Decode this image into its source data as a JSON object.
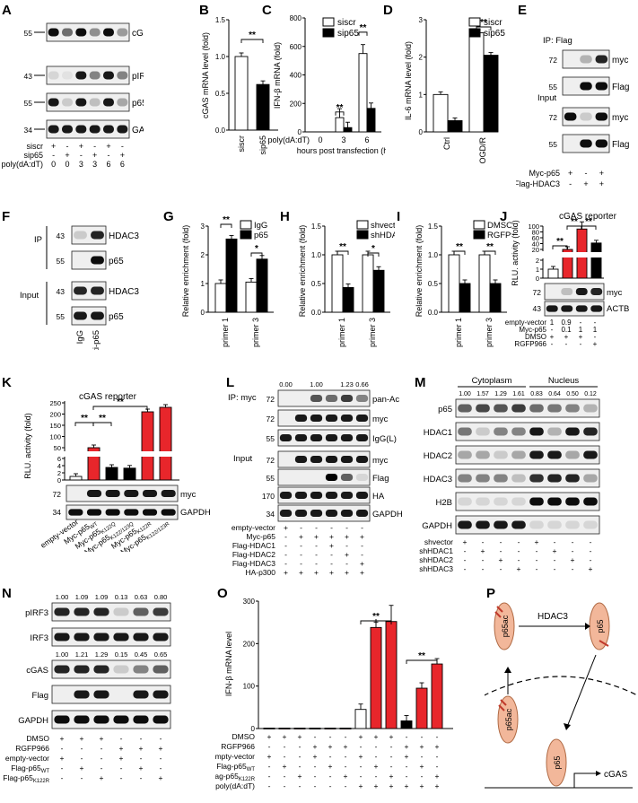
{
  "panels": {
    "A": {
      "letter": "A",
      "markers": [
        "55",
        "43",
        "55",
        "34"
      ],
      "blots": [
        "cGAS",
        "pIRF3",
        "p65",
        "GAPDH"
      ],
      "rows": [
        {
          "label": "siscr",
          "vals": [
            "+",
            "-",
            "+",
            "-",
            "+",
            "-"
          ]
        },
        {
          "label": "sip65",
          "vals": [
            "-",
            "+",
            "-",
            "+",
            "-",
            "+"
          ]
        },
        {
          "label": "poly(dA:dT)",
          "vals": [
            "0",
            "0",
            "3",
            "3",
            "6",
            "6"
          ]
        }
      ]
    },
    "B": {
      "letter": "B",
      "ylabel": "cGAS mRNA level (fold)",
      "sig": "**"
    },
    "C": {
      "letter": "C",
      "ylabel": "IFN-β mRNA (fold)",
      "xlabel": "hours post transfection (h)",
      "xprefix": "poly(dA:dT)",
      "legend": [
        "siscr",
        "sip65"
      ],
      "sig": [
        "**",
        "**"
      ]
    },
    "D": {
      "letter": "D",
      "ylabel": "IL-6 mRNA level (fold)",
      "legend": [
        "siscr",
        "sip65"
      ],
      "sig": "**"
    },
    "E": {
      "letter": "E",
      "ip": "IP: Flag",
      "input": "Input",
      "markers": [
        "72",
        "55",
        "72",
        "55"
      ],
      "blots": [
        "myc",
        "Flag",
        "myc",
        "Flag"
      ],
      "rows": [
        {
          "label": "Myc-p65",
          "vals": [
            "+",
            "-",
            "+"
          ]
        },
        {
          "label": "Flag-HDAC3",
          "vals": [
            "-",
            "+",
            "+"
          ]
        }
      ]
    },
    "F": {
      "letter": "F",
      "ip": "IP",
      "input": "Input",
      "markers": [
        "43",
        "55",
        "43",
        "55"
      ],
      "blots": [
        "HDAC3",
        "p65",
        "HDAC3",
        "p65"
      ],
      "lanes": [
        "IgG",
        "anti-p65"
      ]
    },
    "G": {
      "letter": "G",
      "ylabel": "Relative enrichment (fold)",
      "legend": [
        "IgG",
        "p65"
      ],
      "sig": [
        "**",
        "*"
      ]
    },
    "H": {
      "letter": "H",
      "ylabel": "Relative enrichment (fold)",
      "legend": [
        "shvector",
        "shHDAC3"
      ],
      "sig": [
        "**",
        "*"
      ]
    },
    "I": {
      "letter": "I",
      "ylabel": "Relative enrichment (fold)",
      "legend": [
        "DMSO",
        "RGFP966"
      ],
      "sig": [
        "**",
        "**"
      ]
    },
    "J": {
      "letter": "J",
      "title": "cGAS reporter",
      "ylabel": "RLU. activity (fold)",
      "sig": [
        "**",
        "**",
        "**"
      ],
      "markers": [
        "72",
        "43"
      ],
      "blots": [
        "myc",
        "ACTB"
      ],
      "rows": [
        {
          "label": "empty-vector",
          "vals": [
            "1",
            "0.9",
            "-",
            "-"
          ]
        },
        {
          "label": "Myc-p65",
          "vals": [
            "-",
            "0.1",
            "1",
            "1"
          ]
        },
        {
          "label": "DMSO",
          "vals": [
            "+",
            "+",
            "+",
            "-"
          ]
        },
        {
          "label": "RGFP966",
          "vals": [
            "-",
            "-",
            "-",
            "+"
          ]
        }
      ]
    },
    "K": {
      "letter": "K",
      "title": "cGAS reporter",
      "ylabel": "RLU. activity (fold)",
      "sig": [
        "**",
        "**",
        "**"
      ],
      "markers": [
        "72",
        "34"
      ],
      "blots": [
        "myc",
        "GAPDH"
      ],
      "lanes": [
        {
          "main": "empty-vector",
          "sub": ""
        },
        {
          "main": "Myc-p65",
          "sub": "WT"
        },
        {
          "main": "Myc-p65",
          "sub": "K122Q"
        },
        {
          "main": "Myc-p65",
          "sub": "K122/123Q"
        },
        {
          "main": "Myc-p65",
          "sub": "K122R"
        },
        {
          "main": "Myc-p65",
          "sub": "K122/123R"
        }
      ]
    },
    "L": {
      "letter": "L",
      "ip": "IP: myc",
      "input": "Input",
      "quant": [
        "0.00",
        "1.00",
        "1.23",
        "0.66"
      ],
      "markers": [
        "72",
        "72",
        "55",
        "72",
        "55",
        "170",
        "34"
      ],
      "blots": [
        "pan-Ac",
        "myc",
        "IgG(L)",
        "myc",
        "Flag",
        "HA",
        "GAPDH"
      ],
      "rows": [
        {
          "label": "empty-vector",
          "vals": [
            "+",
            "-",
            "-",
            "-",
            "-",
            "-"
          ]
        },
        {
          "label": "Myc-p65",
          "vals": [
            "-",
            "+",
            "+",
            "+",
            "+",
            "+"
          ]
        },
        {
          "label": "Flag-HDAC1",
          "vals": [
            "-",
            "-",
            "-",
            "+",
            "-",
            "-"
          ]
        },
        {
          "label": "Flag-HDAC2",
          "vals": [
            "-",
            "-",
            "-",
            "-",
            "+",
            "-"
          ]
        },
        {
          "label": "Flag-HDAC3",
          "vals": [
            "-",
            "-",
            "-",
            "-",
            "-",
            "+"
          ]
        },
        {
          "label": "HA-p300",
          "vals": [
            "+",
            "+",
            "+",
            "+",
            "+",
            "+"
          ]
        }
      ]
    },
    "M": {
      "letter": "M",
      "groups": [
        "Cytoplasm",
        "Nucleus"
      ],
      "quant": [
        "1.00",
        "1.57",
        "1.29",
        "1.61",
        "0.83",
        "0.64",
        "0.50",
        "0.12"
      ],
      "blots": [
        "p65",
        "HDAC1",
        "HDAC2",
        "HDAC3",
        "H2B",
        "GAPDH"
      ],
      "rows": [
        {
          "label": "shvector",
          "vals": [
            "+",
            "-",
            "-",
            "-",
            "+",
            "-",
            "-",
            "-"
          ]
        },
        {
          "label": "shHDAC1",
          "vals": [
            "-",
            "+",
            "-",
            "-",
            "-",
            "+",
            "-",
            "-"
          ]
        },
        {
          "label": "shHDAC2",
          "vals": [
            "-",
            "-",
            "+",
            "-",
            "-",
            "-",
            "+",
            "-"
          ]
        },
        {
          "label": "shHDAC3",
          "vals": [
            "-",
            "-",
            "-",
            "+",
            "-",
            "-",
            "-",
            "+"
          ]
        }
      ]
    },
    "N": {
      "letter": "N",
      "quant1": [
        "1.00",
        "1.09",
        "1.09",
        "0.13",
        "0.63",
        "0.80"
      ],
      "quant2": [
        "1.00",
        "1.21",
        "1.29",
        "0.15",
        "0.45",
        "0.65"
      ],
      "blots": [
        "pIRF3",
        "IRF3",
        "cGAS",
        "Flag",
        "GAPDH"
      ],
      "rows": [
        {
          "label": "DMSO",
          "main": "DMSO",
          "sub": "",
          "vals": [
            "+",
            "+",
            "+",
            "-",
            "-",
            "-"
          ]
        },
        {
          "label": "RGFP966",
          "main": "RGFP966",
          "sub": "",
          "vals": [
            "-",
            "-",
            "-",
            "+",
            "+",
            "+"
          ]
        },
        {
          "label": "empty-vector",
          "main": "empty-vector",
          "sub": "",
          "vals": [
            "+",
            "-",
            "-",
            "+",
            "-",
            "-"
          ]
        },
        {
          "label": "Flag-p65WT",
          "main": "Flag-p65",
          "sub": "WT",
          "vals": [
            "-",
            "+",
            "-",
            "-",
            "+",
            "-"
          ]
        },
        {
          "label": "Flag-p65K122R",
          "main": "Flag-p65",
          "sub": "K122R",
          "vals": [
            "-",
            "-",
            "+",
            "-",
            "-",
            "+"
          ]
        }
      ]
    },
    "O": {
      "letter": "O",
      "ylabel": "IFN-β mRNA level",
      "yticks": [
        "0",
        "100",
        "200",
        "300"
      ],
      "sig": [
        "**",
        "**"
      ],
      "rows": [
        {
          "main": "DMSO",
          "sub": "",
          "vals": [
            "+",
            "+",
            "+",
            "-",
            "-",
            "-",
            "+",
            "+",
            "+",
            "-",
            "-",
            "-"
          ]
        },
        {
          "main": "RGFP966",
          "sub": "",
          "vals": [
            "-",
            "-",
            "-",
            "+",
            "+",
            "+",
            "-",
            "-",
            "-",
            "+",
            "+",
            "+"
          ]
        },
        {
          "main": "empty-vector",
          "sub": "",
          "vals": [
            "+",
            "-",
            "-",
            "+",
            "-",
            "-",
            "+",
            "-",
            "-",
            "+",
            "-",
            "-"
          ]
        },
        {
          "main": "Flag-p65",
          "sub": "WT",
          "vals": [
            "-",
            "+",
            "-",
            "-",
            "+",
            "-",
            "-",
            "+",
            "-",
            "-",
            "+",
            "-"
          ]
        },
        {
          "main": "Flag-p65",
          "sub": "K122R",
          "vals": [
            "-",
            "-",
            "+",
            "-",
            "-",
            "+",
            "-",
            "-",
            "+",
            "-",
            "-",
            "+"
          ]
        },
        {
          "main": "poly(dA:dT)",
          "sub": "",
          "vals": [
            "-",
            "-",
            "-",
            "-",
            "-",
            "-",
            "+",
            "+",
            "+",
            "+",
            "+",
            "+"
          ]
        }
      ]
    },
    "P": {
      "letter": "P",
      "enzyme": "HDAC3",
      "p65ac": "p65ac",
      "p65": "p65",
      "gene": "cGAS"
    }
  },
  "chart_data": [
    {
      "panel": "B",
      "type": "bar",
      "categories": [
        "siscr",
        "sip65"
      ],
      "values": [
        1.0,
        0.62
      ],
      "ylim": [
        0,
        1.5
      ],
      "yticks": [
        0,
        0.5,
        1.0,
        1.5
      ],
      "ylabel": "cGAS mRNA level (fold)",
      "colors": [
        "#ffffff",
        "#000000"
      ]
    },
    {
      "panel": "C",
      "type": "bar",
      "categories": [
        "0",
        "3",
        "6"
      ],
      "series": [
        {
          "name": "siscr",
          "values": [
            0,
            100,
            550
          ]
        },
        {
          "name": "sip65",
          "values": [
            0,
            30,
            165
          ]
        }
      ],
      "ylim": [
        0,
        800
      ],
      "yticks": [
        0,
        200,
        400,
        600,
        800
      ],
      "ylabel": "IFN-β mRNA (fold)",
      "xlabel": "hours post transfection (h)"
    },
    {
      "panel": "D",
      "type": "bar",
      "categories": [
        "Ctrl",
        "OGD/R"
      ],
      "series": [
        {
          "name": "siscr",
          "values": [
            1.0,
            2.65
          ]
        },
        {
          "name": "sip65",
          "values": [
            0.3,
            2.05
          ]
        }
      ],
      "ylim": [
        0,
        3
      ],
      "yticks": [
        0,
        1,
        2,
        3
      ],
      "ylabel": "IL-6 mRNA level (fold)"
    },
    {
      "panel": "G",
      "type": "bar",
      "categories": [
        "primer 1",
        "primer 3"
      ],
      "series": [
        {
          "name": "IgG",
          "values": [
            1.0,
            1.05
          ]
        },
        {
          "name": "p65",
          "values": [
            2.55,
            1.85
          ]
        }
      ],
      "ylim": [
        0,
        3
      ],
      "yticks": [
        0,
        1,
        2,
        3
      ],
      "ylabel": "Relative enrichment (fold)"
    },
    {
      "panel": "H",
      "type": "bar",
      "categories": [
        "primer 1",
        "primer 3"
      ],
      "series": [
        {
          "name": "shvector",
          "values": [
            1.0,
            1.0
          ]
        },
        {
          "name": "shHDAC3",
          "values": [
            0.43,
            0.73
          ]
        }
      ],
      "ylim": [
        0,
        1.5
      ],
      "yticks": [
        0,
        0.5,
        1.0,
        1.5
      ],
      "ylabel": "Relative enrichment (fold)"
    },
    {
      "panel": "I",
      "type": "bar",
      "categories": [
        "primer 1",
        "primer 3"
      ],
      "series": [
        {
          "name": "DMSO",
          "values": [
            1.0,
            1.0
          ]
        },
        {
          "name": "RGFP966",
          "values": [
            0.5,
            0.5
          ]
        }
      ],
      "ylim": [
        0,
        1.5
      ],
      "yticks": [
        0,
        0.5,
        1.0,
        1.5
      ],
      "ylabel": "Relative enrichment (fold)"
    },
    {
      "panel": "J",
      "type": "bar",
      "categories": [
        "1",
        "2",
        "3",
        "4"
      ],
      "values": [
        1.0,
        20.0,
        90.0,
        42.0
      ],
      "colors": [
        "#ffffff",
        "#e8262b",
        "#e8262b",
        "#000000"
      ],
      "yticks": [
        0,
        1,
        2,
        20,
        40,
        60,
        80,
        100
      ],
      "ylabel": "RLU. activity (fold)",
      "title": "cGAS reporter"
    },
    {
      "panel": "K",
      "type": "bar",
      "categories": [
        "empty-vector",
        "Myc-p65WT",
        "Myc-p65K122Q",
        "Myc-p65K122/123Q",
        "Myc-p65K122R",
        "Myc-p65K122/123R"
      ],
      "values": [
        1.0,
        50.0,
        3.5,
        3.3,
        210.0,
        230.0
      ],
      "colors": [
        "#ffffff",
        "#e8262b",
        "#000000",
        "#000000",
        "#e8262b",
        "#e8262b"
      ],
      "yticks": [
        0,
        2,
        4,
        6,
        50,
        100,
        150,
        200,
        250
      ],
      "ylabel": "RLU. activity (fold)",
      "title": "cGAS reporter"
    },
    {
      "panel": "O",
      "type": "bar",
      "categories": [
        "1",
        "2",
        "3",
        "4",
        "5",
        "6",
        "7",
        "8",
        "9",
        "10",
        "11",
        "12"
      ],
      "values": [
        1,
        1,
        1,
        1,
        1,
        1,
        45,
        238,
        252,
        18,
        95,
        152
      ],
      "colors": [
        "#ffffff",
        "#e8262b",
        "#e8262b",
        "#000000",
        "#e8262b",
        "#e8262b",
        "#ffffff",
        "#e8262b",
        "#e8262b",
        "#000000",
        "#e8262b",
        "#e8262b"
      ],
      "ylim": [
        0,
        300
      ],
      "yticks": [
        0,
        100,
        200,
        300
      ],
      "ylabel": "IFN-β mRNA level"
    }
  ]
}
